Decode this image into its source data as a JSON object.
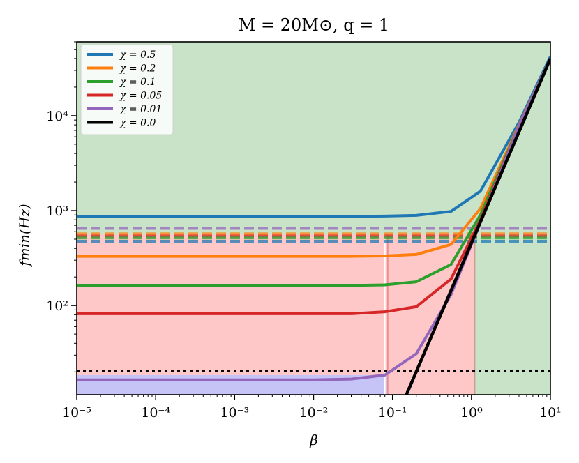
{
  "chart_data": {
    "type": "line",
    "title": "M = 20M⊙, q = 1",
    "xlabel": "β",
    "ylabel": "fmin(Hz)",
    "xscale": "log",
    "yscale": "log",
    "xlim": [
      1e-05,
      10
    ],
    "ylim": [
      11.5,
      60000
    ],
    "x_ticks": [
      {
        "value": 1e-05,
        "label": "10⁻⁵"
      },
      {
        "value": 0.0001,
        "label": "10⁻⁴"
      },
      {
        "value": 0.001,
        "label": "10⁻³"
      },
      {
        "value": 0.01,
        "label": "10⁻²"
      },
      {
        "value": 0.1,
        "label": "10⁻¹"
      },
      {
        "value": 1,
        "label": "10⁰"
      },
      {
        "value": 10,
        "label": "10¹"
      }
    ],
    "y_ticks": [
      {
        "value": 100,
        "label": "10²"
      },
      {
        "value": 1000,
        "label": "10³"
      },
      {
        "value": 10000,
        "label": "10⁴"
      }
    ],
    "x": [
      1e-05,
      0.0001,
      0.001,
      0.01,
      0.03,
      0.08,
      0.2,
      0.55,
      1.3,
      4.0,
      10
    ],
    "series": [
      {
        "name": "χ = 0.5",
        "color": "#1f77b4",
        "values": [
          870,
          870,
          870,
          870,
          870,
          875,
          890,
          980,
          1600,
          8500,
          42000
        ]
      },
      {
        "name": "χ = 0.2",
        "color": "#ff7f0e",
        "values": [
          330,
          330,
          330,
          330,
          330,
          333,
          345,
          440,
          1050,
          8000,
          40000
        ]
      },
      {
        "name": "χ = 0.1",
        "color": "#2ca02c",
        "values": [
          163,
          163,
          163,
          163,
          163,
          165,
          178,
          270,
          900,
          7800,
          40000
        ]
      },
      {
        "name": "χ = 0.05",
        "color": "#d62728",
        "values": [
          82,
          82,
          82,
          82,
          82,
          86,
          97,
          190,
          800,
          7800,
          40000
        ]
      },
      {
        "name": "χ = 0.01",
        "color": "#9467bd",
        "values": [
          16.5,
          16.5,
          16.5,
          16.5,
          16.8,
          18.5,
          31,
          130,
          750,
          7800,
          40000
        ]
      }
    ],
    "power_law_line": {
      "name": "χ = 0.0",
      "color": "#000000",
      "x": [
        0.15,
        10
      ],
      "values": [
        11.5,
        40000
      ]
    },
    "dashed_hlines": [
      {
        "value": 650,
        "color": "#9467bd"
      },
      {
        "value": 570,
        "color": "#ff7f0e"
      },
      {
        "value": 540,
        "color": "#d62728"
      },
      {
        "value": 515,
        "color": "#2ca02c"
      },
      {
        "value": 475,
        "color": "#1f77b4"
      }
    ],
    "dotted_hline": {
      "value": 20.5,
      "color": "#000000"
    },
    "shaded_regions": [
      {
        "name": "green-region",
        "color": "#c9e3c9",
        "x": [
          1e-05,
          10
        ],
        "y": [
          11.5,
          60000
        ]
      },
      {
        "name": "red-region",
        "color": "#ffc8c8",
        "x": [
          1e-05,
          1.1
        ],
        "y": [
          11.5,
          560
        ]
      },
      {
        "name": "blue-region",
        "color": "#c6c4f6",
        "x": [
          1e-05,
          0.087
        ],
        "y": [
          11.5,
          18.5
        ]
      }
    ],
    "region_vlines": [
      {
        "value": 0.08,
        "color": "#ffffff"
      },
      {
        "value": 0.087,
        "color": "#f28a8a"
      },
      {
        "value": 1.1,
        "color": "#c8a090"
      }
    ],
    "legend_position": "top-left"
  }
}
